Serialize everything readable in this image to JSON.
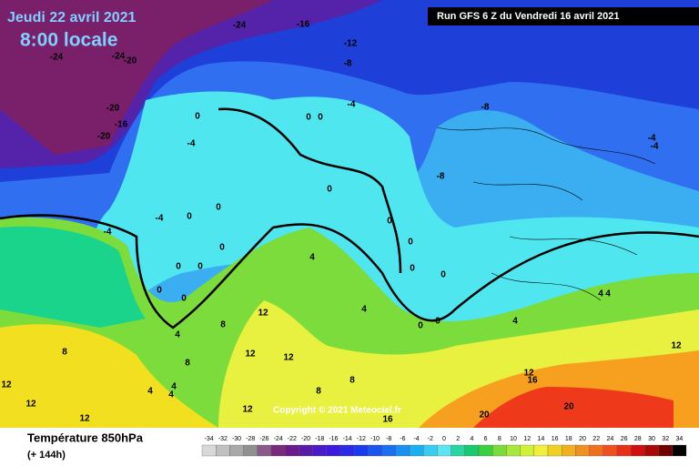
{
  "header": {
    "date": "Jeudi 22 avril 2021",
    "time": "8:00 locale",
    "run": "Run GFS 6 Z du Vendredi 16 avril 2021"
  },
  "copyright": "Copyright © 2021 Meteociel.fr",
  "legend": {
    "title": "Température 850hPa",
    "lead": "(+ 144h)",
    "scale": [
      -34,
      -32,
      -30,
      -28,
      -26,
      -24,
      -22,
      -20,
      -18,
      -16,
      -14,
      -12,
      -10,
      -8,
      -6,
      -4,
      -2,
      0,
      2,
      4,
      6,
      8,
      10,
      12,
      14,
      16,
      18,
      20,
      22,
      24,
      26,
      28,
      30,
      32,
      34
    ]
  },
  "map": {
    "labels": [
      -24,
      -16,
      -24,
      -24,
      -20,
      -12,
      -8,
      -20,
      -16,
      -20,
      0,
      0,
      0,
      -4,
      -8,
      -4,
      -4,
      -4,
      0,
      -8,
      -4,
      -4,
      0,
      0,
      0,
      0,
      0,
      4,
      0,
      0,
      0,
      0,
      0,
      0,
      4,
      4,
      12,
      4,
      0,
      0,
      4,
      8,
      4,
      12,
      8,
      12,
      12,
      8,
      12,
      16,
      8,
      4,
      4,
      4,
      12,
      12,
      12,
      8,
      12,
      16,
      20,
      20
    ]
  }
}
